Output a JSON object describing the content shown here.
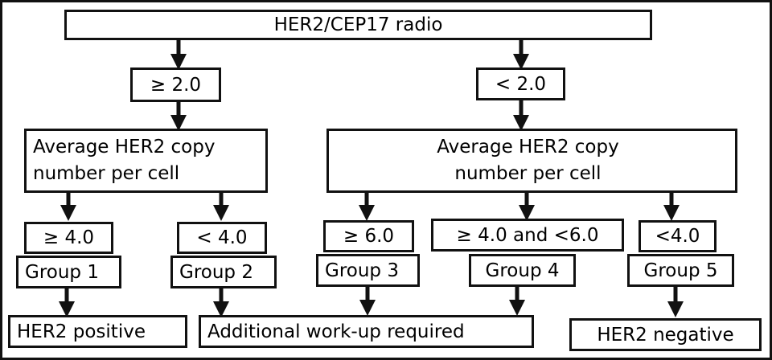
{
  "title": "HER2/CEP17 radio",
  "ratio_branches": {
    "high": "≥ 2.0",
    "low": "< 2.0"
  },
  "copy_number_label_left": "Average HER2 copy number per cell",
  "copy_number_label_right": "Average HER2 copy number per cell",
  "copy_number_branches": [
    "≥ 4.0",
    "< 4.0",
    "≥ 6.0",
    "≥ 4.0 and <6.0",
    "<4.0"
  ],
  "groups": [
    "Group 1",
    "Group 2",
    "Group 3",
    "Group 4",
    "Group 5"
  ],
  "outcomes": {
    "positive": "HER2 positive",
    "workup": "Additional work-up required",
    "negative": "HER2 negative"
  }
}
